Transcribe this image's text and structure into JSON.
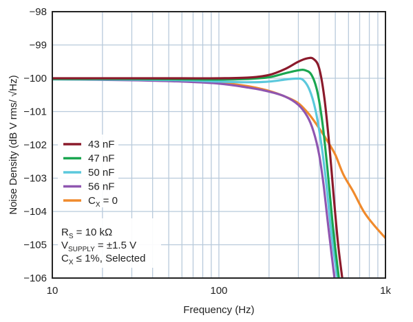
{
  "chart_data": {
    "type": "line",
    "title": "",
    "xlabel": "Frequency (Hz)",
    "ylabel": "Noise Density (dB V rms/ √Hz)",
    "xscale": "log",
    "xlim": [
      10,
      1000
    ],
    "ylim": [
      -106,
      -98
    ],
    "x_ticks": [
      {
        "value": 10,
        "label": "10"
      },
      {
        "value": 100,
        "label": "100"
      },
      {
        "value": 1000,
        "label": "1k"
      }
    ],
    "y_ticks": [
      {
        "value": -98,
        "label": "−98"
      },
      {
        "value": -99,
        "label": "−99"
      },
      {
        "value": -100,
        "label": "−100"
      },
      {
        "value": -101,
        "label": "−101"
      },
      {
        "value": -102,
        "label": "−102"
      },
      {
        "value": -103,
        "label": "−103"
      },
      {
        "value": -104,
        "label": "−104"
      },
      {
        "value": -105,
        "label": "−105"
      },
      {
        "value": -106,
        "label": "−106"
      }
    ],
    "grid": true,
    "legend_position": "left",
    "series": [
      {
        "name": "43 nF",
        "color": "#8b1a2b",
        "x": [
          10,
          30,
          60,
          100,
          150,
          200,
          250,
          300,
          340,
          370,
          400,
          430,
          460,
          490,
          520,
          550
        ],
        "y": [
          -100.0,
          -100.0,
          -100.0,
          -100.0,
          -99.98,
          -99.9,
          -99.72,
          -99.5,
          -99.4,
          -99.42,
          -99.7,
          -100.6,
          -102.0,
          -103.6,
          -105.0,
          -106.0
        ]
      },
      {
        "name": "47 nF",
        "color": "#1aa650",
        "x": [
          10,
          30,
          60,
          100,
          150,
          200,
          250,
          300,
          330,
          360,
          390,
          420,
          450,
          480,
          505,
          525
        ],
        "y": [
          -100.02,
          -100.02,
          -100.03,
          -100.04,
          -100.02,
          -99.97,
          -99.85,
          -99.76,
          -99.76,
          -99.9,
          -100.4,
          -101.4,
          -102.8,
          -104.3,
          -105.3,
          -106.0
        ]
      },
      {
        "name": "50 nF",
        "color": "#5bc8dc",
        "x": [
          10,
          30,
          60,
          100,
          150,
          200,
          250,
          290,
          320,
          350,
          380,
          410,
          440,
          470,
          495,
          515
        ],
        "y": [
          -100.03,
          -100.04,
          -100.06,
          -100.1,
          -100.12,
          -100.1,
          -100.04,
          -100.01,
          -100.05,
          -100.35,
          -100.95,
          -101.9,
          -103.1,
          -104.5,
          -105.4,
          -106.0
        ]
      },
      {
        "name": "56 nF",
        "color": "#8f56b0",
        "x": [
          10,
          30,
          60,
          100,
          150,
          200,
          250,
          300,
          340,
          370,
          400,
          425,
          450,
          475,
          494
        ],
        "y": [
          -100.03,
          -100.06,
          -100.1,
          -100.16,
          -100.28,
          -100.4,
          -100.55,
          -100.8,
          -101.15,
          -101.6,
          -102.3,
          -103.2,
          -104.3,
          -105.3,
          -106.0
        ]
      },
      {
        "name": "Cₓ = 0",
        "color": "#f08a2c",
        "x": [
          10,
          30,
          60,
          100,
          150,
          200,
          250,
          300,
          350,
          400,
          450,
          500,
          560,
          640,
          740,
          850,
          1000
        ],
        "y": [
          -100.02,
          -100.05,
          -100.08,
          -100.13,
          -100.24,
          -100.38,
          -100.55,
          -100.75,
          -101.1,
          -101.5,
          -101.9,
          -102.3,
          -102.9,
          -103.4,
          -104.0,
          -104.4,
          -104.8
        ]
      }
    ],
    "legend": [
      {
        "label": "43 nF",
        "color": "#8b1a2b"
      },
      {
        "label": "47 nF",
        "color": "#1aa650"
      },
      {
        "label": "50 nF",
        "color": "#5bc8dc"
      },
      {
        "label": "56 nF",
        "color": "#8f56b0"
      },
      {
        "label_main": "C",
        "label_sub": "X",
        "label_rest": " = 0",
        "color": "#f08a2c"
      }
    ],
    "annotation": {
      "line1": {
        "main": "R",
        "sub": "S",
        "rest": " = 10 kΩ"
      },
      "line2": {
        "main": "V",
        "sub": "SUPPLY",
        "rest": " = ±1.5 V"
      },
      "line3": {
        "main": "C",
        "sub": "X",
        "rest": " ≤ 1%, Selected"
      }
    }
  }
}
